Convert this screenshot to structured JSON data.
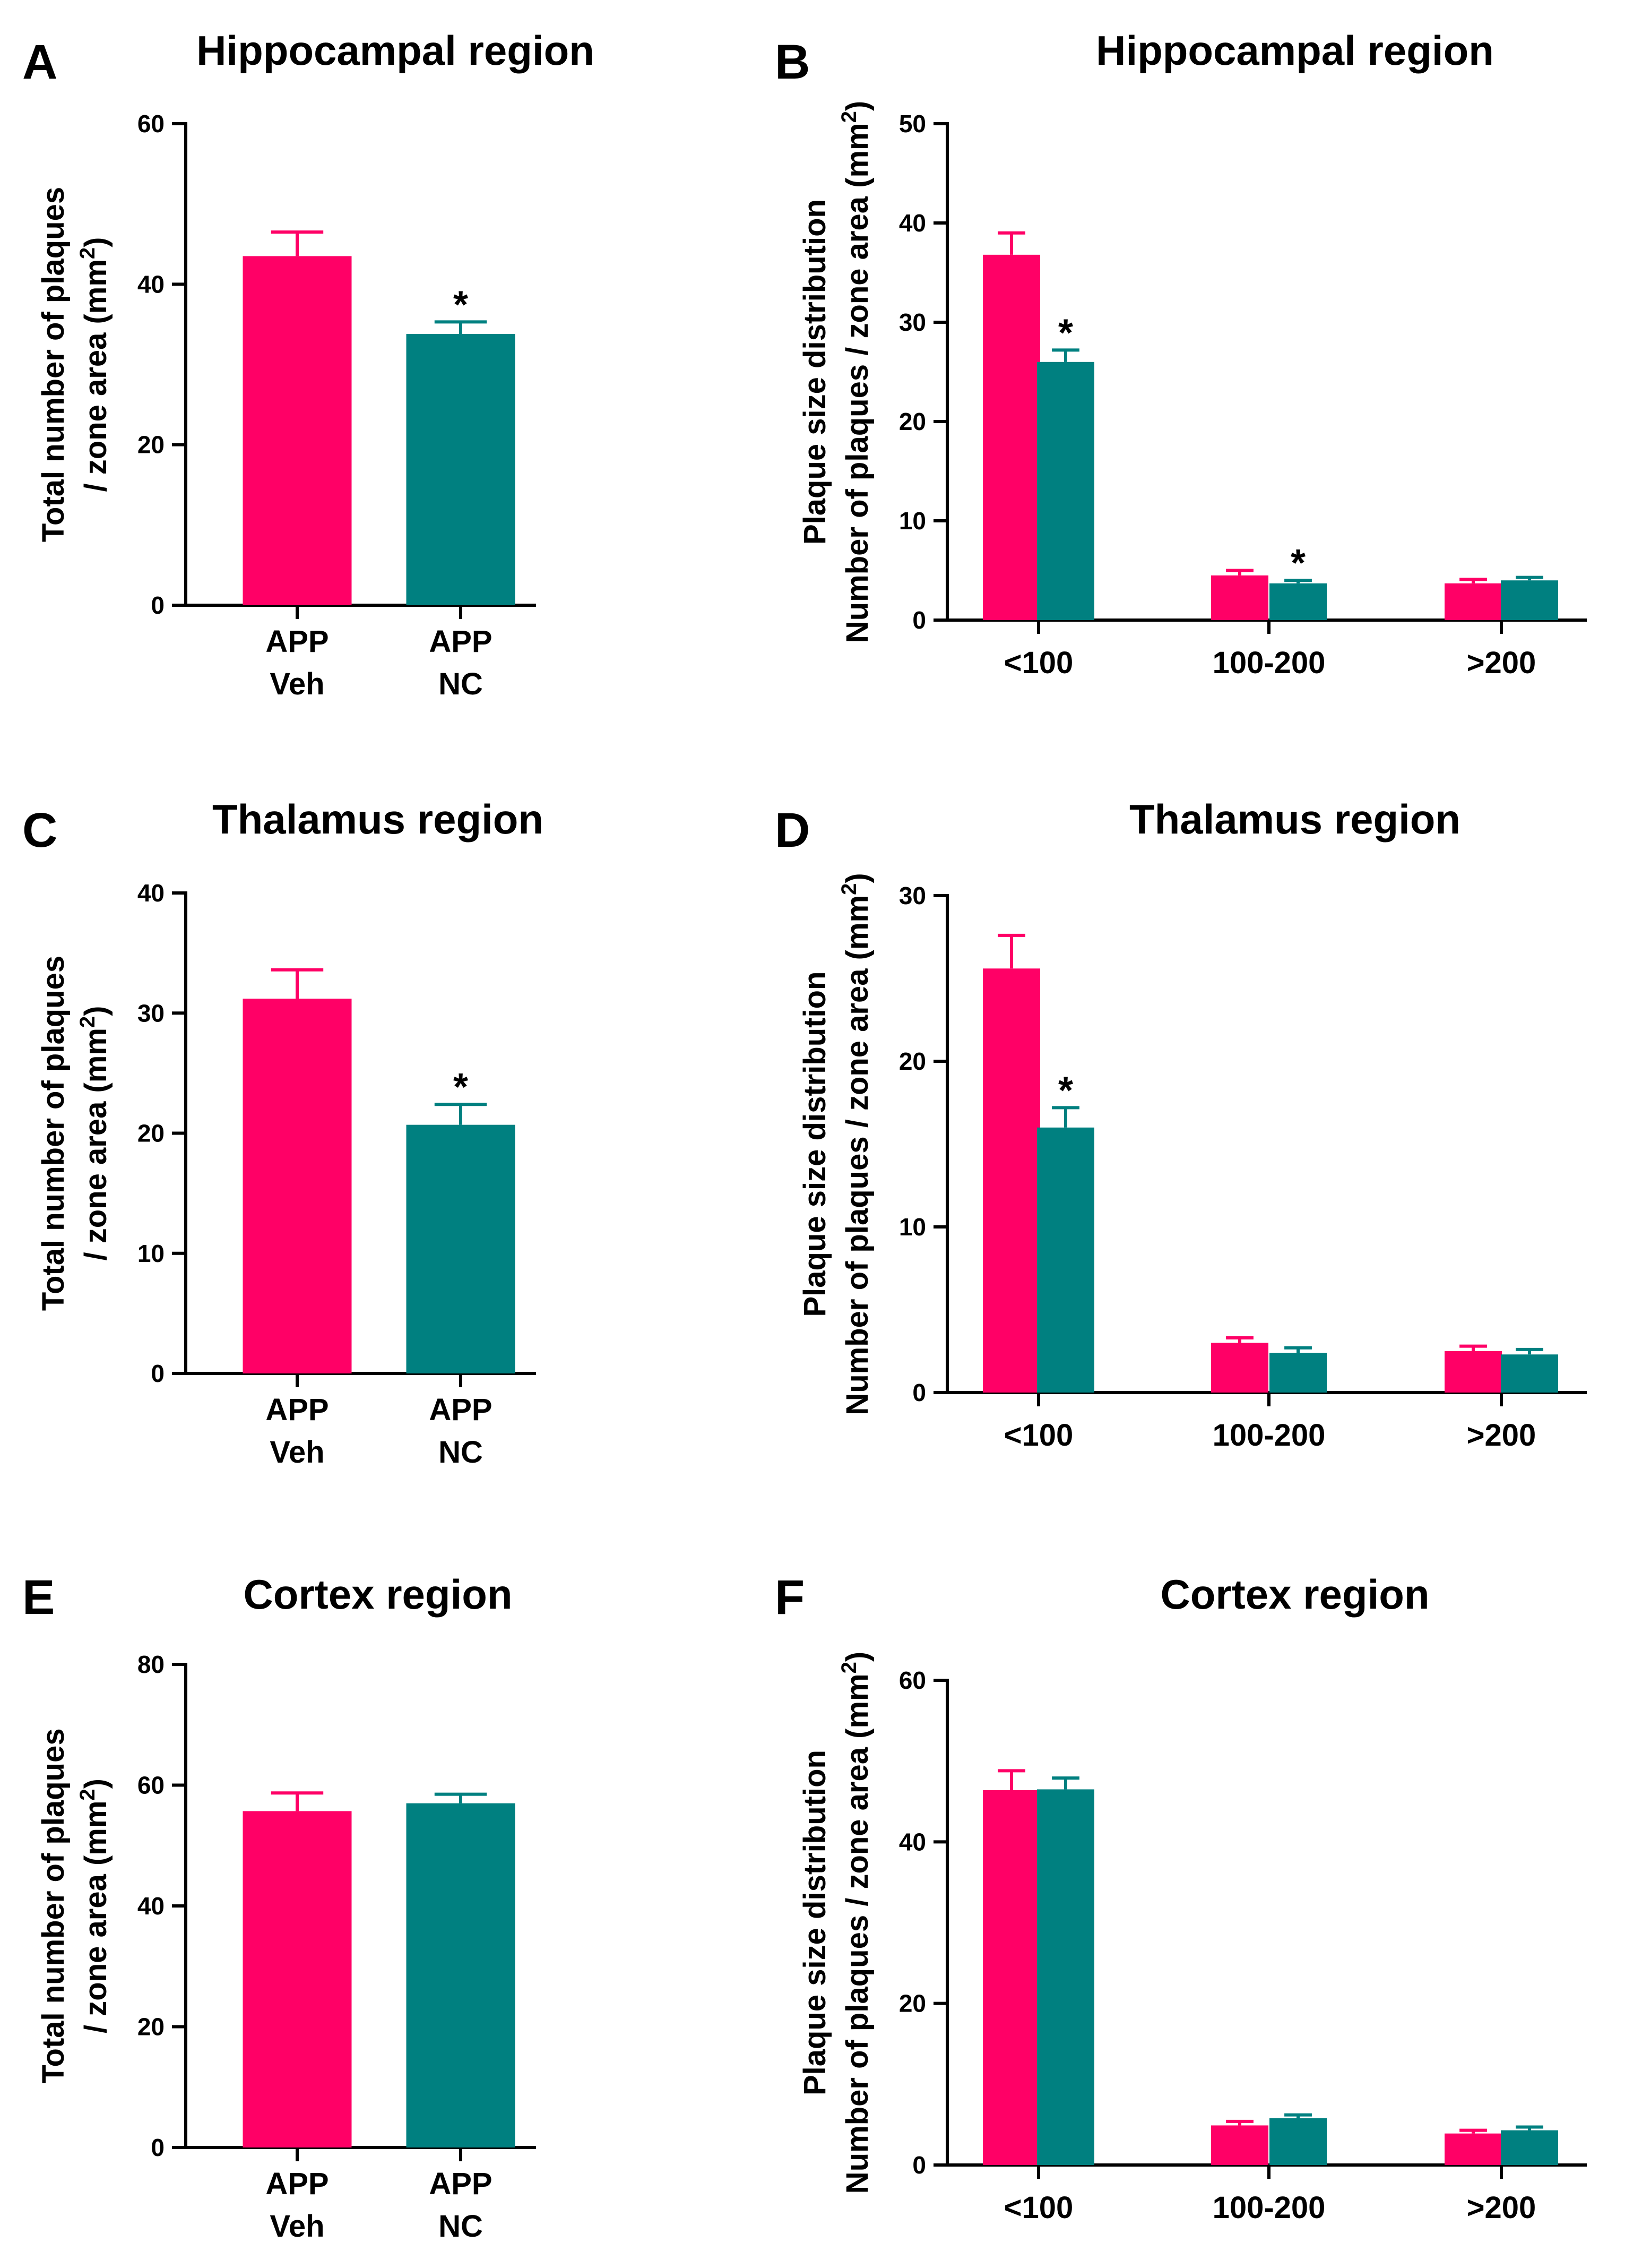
{
  "colors": {
    "veh": "#ff0066",
    "nc": "#008080",
    "axis": "#000000"
  },
  "series_names": [
    "APP Veh",
    "APP NC"
  ],
  "chart_data": [
    {
      "panel": "A",
      "type": "bar",
      "title": "Hippocampal region",
      "ylabel": [
        "Total number of plaques",
        "/ zone area (mm²)"
      ],
      "ylim": [
        0,
        60
      ],
      "yticks": [
        0,
        20,
        40,
        60
      ],
      "categories": [
        [
          "APP",
          "Veh"
        ],
        [
          "APP",
          "NC"
        ]
      ],
      "values": [
        43.5,
        33.8
      ],
      "errors": [
        3.0,
        1.5
      ],
      "significant": [
        false,
        true
      ]
    },
    {
      "panel": "B",
      "type": "bar",
      "title": "Hippocampal region",
      "ylabel": [
        "Plaque size distribution",
        "Number of plaques / zone area (mm²)"
      ],
      "ylim": [
        0,
        50
      ],
      "yticks": [
        0,
        10,
        20,
        30,
        40,
        50
      ],
      "categories": [
        "<100",
        "100-200",
        ">200"
      ],
      "series": [
        {
          "name": "APP Veh",
          "values": [
            36.8,
            4.5,
            3.7
          ],
          "errors": [
            2.2,
            0.5,
            0.4
          ],
          "significant": [
            false,
            false,
            false
          ]
        },
        {
          "name": "APP NC",
          "values": [
            26.0,
            3.7,
            4.0
          ],
          "errors": [
            1.2,
            0.3,
            0.3
          ],
          "significant": [
            true,
            true,
            false
          ]
        }
      ]
    },
    {
      "panel": "C",
      "type": "bar",
      "title": "Thalamus region",
      "ylabel": [
        "Total number of plaques",
        "/ zone area (mm²)"
      ],
      "ylim": [
        0,
        40
      ],
      "yticks": [
        0,
        10,
        20,
        30,
        40
      ],
      "categories": [
        [
          "APP",
          "Veh"
        ],
        [
          "APP",
          "NC"
        ]
      ],
      "values": [
        31.2,
        20.7
      ],
      "errors": [
        2.4,
        1.7
      ],
      "significant": [
        false,
        true
      ]
    },
    {
      "panel": "D",
      "type": "bar",
      "title": "Thalamus region",
      "ylabel": [
        "Plaque size distribution",
        "Number of plaques / zone area (mm²)"
      ],
      "ylim": [
        0,
        30
      ],
      "yticks": [
        0,
        10,
        20,
        30
      ],
      "categories": [
        "<100",
        "100-200",
        ">200"
      ],
      "series": [
        {
          "name": "APP Veh",
          "values": [
            25.6,
            3.0,
            2.5
          ],
          "errors": [
            2.0,
            0.3,
            0.3
          ],
          "significant": [
            false,
            false,
            false
          ]
        },
        {
          "name": "APP NC",
          "values": [
            16.0,
            2.4,
            2.3
          ],
          "errors": [
            1.2,
            0.3,
            0.3
          ],
          "significant": [
            true,
            false,
            false
          ]
        }
      ]
    },
    {
      "panel": "E",
      "type": "bar",
      "title": "Cortex region",
      "ylabel": [
        "Total number of plaques",
        "/ zone area (mm²)"
      ],
      "ylim": [
        0,
        80
      ],
      "yticks": [
        0,
        20,
        40,
        60,
        80
      ],
      "categories": [
        [
          "APP",
          "Veh"
        ],
        [
          "APP",
          "NC"
        ]
      ],
      "values": [
        55.7,
        57.0
      ],
      "errors": [
        3.0,
        1.5
      ],
      "significant": [
        false,
        false
      ]
    },
    {
      "panel": "F",
      "type": "bar",
      "title": "Cortex region",
      "ylabel": [
        "Plaque size distribution",
        "Number of plaques / zone area (mm²)"
      ],
      "ylim": [
        0,
        60
      ],
      "yticks": [
        0,
        20,
        40,
        60
      ],
      "categories": [
        "<100",
        "100-200",
        ">200"
      ],
      "series": [
        {
          "name": "APP Veh",
          "values": [
            46.4,
            4.9,
            3.9
          ],
          "errors": [
            2.4,
            0.5,
            0.4
          ],
          "significant": [
            false,
            false,
            false
          ]
        },
        {
          "name": "APP NC",
          "values": [
            46.5,
            5.8,
            4.3
          ],
          "errors": [
            1.4,
            0.4,
            0.4
          ],
          "significant": [
            false,
            false,
            false
          ]
        }
      ]
    }
  ]
}
